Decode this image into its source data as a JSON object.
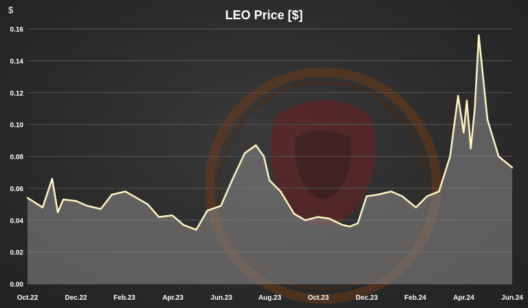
{
  "chart_data": {
    "type": "area",
    "title": "LEO Price [$]",
    "ylabel": "$",
    "xlabel": "",
    "ylim": [
      0,
      0.16
    ],
    "yticks": [
      "0.00",
      "0.02",
      "0.04",
      "0.06",
      "0.08",
      "0.10",
      "0.12",
      "0.14",
      "0.16"
    ],
    "xtick_labels": [
      "Oct.22",
      "Dec.22",
      "Feb.23",
      "Apr.23",
      "Jun.23",
      "Aug.23",
      "Oct.23",
      "Dec.23",
      "Feb.24",
      "Apr.24",
      "Jun.24"
    ],
    "grid": true,
    "line_color": "#fff5c4",
    "fill_color": "#8a8a8a",
    "series": [
      {
        "x": [
          "2022-10-01",
          "2022-10-20",
          "2022-11-01",
          "2022-11-08",
          "2022-11-15",
          "2022-12-01",
          "2022-12-15",
          "2023-01-01",
          "2023-01-15",
          "2023-02-01",
          "2023-02-15",
          "2023-03-01",
          "2023-03-15",
          "2023-04-01",
          "2023-04-15",
          "2023-05-01",
          "2023-05-15",
          "2023-06-01",
          "2023-06-15",
          "2023-07-01",
          "2023-07-15",
          "2023-07-25",
          "2023-08-01",
          "2023-08-15",
          "2023-09-01",
          "2023-09-15",
          "2023-10-01",
          "2023-10-15",
          "2023-11-01",
          "2023-11-10",
          "2023-11-20",
          "2023-12-01",
          "2023-12-15",
          "2024-01-01",
          "2024-01-15",
          "2024-02-01",
          "2024-02-15",
          "2024-03-01",
          "2024-03-15",
          "2024-03-25",
          "2024-04-01",
          "2024-04-05",
          "2024-04-10",
          "2024-04-15",
          "2024-04-20",
          "2024-05-01",
          "2024-05-15",
          "2024-06-01"
        ],
        "values": [
          0.054,
          0.048,
          0.066,
          0.045,
          0.053,
          0.052,
          0.049,
          0.047,
          0.056,
          0.058,
          0.054,
          0.05,
          0.042,
          0.043,
          0.037,
          0.034,
          0.046,
          0.049,
          0.065,
          0.082,
          0.087,
          0.08,
          0.065,
          0.058,
          0.044,
          0.04,
          0.042,
          0.041,
          0.037,
          0.036,
          0.038,
          0.055,
          0.056,
          0.058,
          0.055,
          0.048,
          0.055,
          0.058,
          0.08,
          0.118,
          0.095,
          0.115,
          0.085,
          0.11,
          0.156,
          0.103,
          0.08,
          0.073
        ]
      }
    ]
  }
}
